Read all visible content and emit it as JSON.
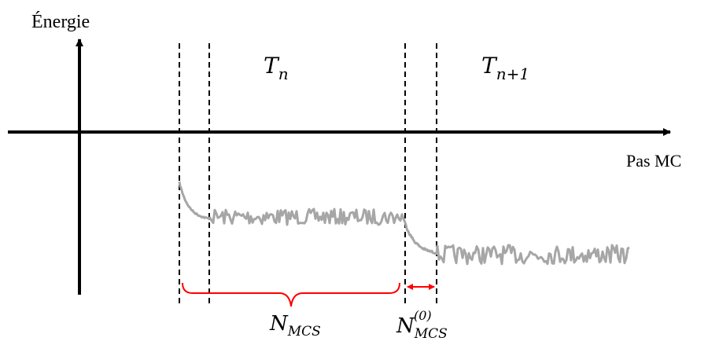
{
  "axes": {
    "y_label": "Énergie",
    "x_label": "Pas MC"
  },
  "regions": {
    "t_n": {
      "base": "T",
      "sub": "n"
    },
    "t_n1": {
      "base": "T",
      "sub": "n+1"
    }
  },
  "annotations": {
    "n_mcs": {
      "base": "N",
      "sub": "MCS"
    },
    "n_mcs0": {
      "base": "N",
      "sub": "MCS",
      "sup": "(0)"
    }
  },
  "colors": {
    "axis": "#000000",
    "trace": "#a6a6a6",
    "brace": "#ff0000",
    "arrow": "#ff0000"
  }
}
